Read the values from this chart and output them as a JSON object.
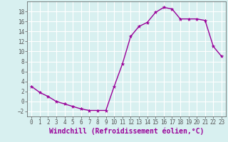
{
  "x": [
    0,
    1,
    2,
    3,
    4,
    5,
    6,
    7,
    8,
    9,
    10,
    11,
    12,
    13,
    14,
    15,
    16,
    17,
    18,
    19,
    20,
    21,
    22,
    23
  ],
  "y": [
    3.0,
    1.8,
    1.0,
    0.0,
    -0.5,
    -1.0,
    -1.5,
    -1.8,
    -1.8,
    -1.8,
    3.0,
    7.5,
    13.0,
    15.0,
    15.8,
    17.8,
    18.8,
    18.5,
    16.5,
    16.5,
    16.5,
    16.2,
    11.0,
    9.0
  ],
  "line_color": "#990099",
  "marker": "*",
  "bg_color": "#d8f0f0",
  "grid_color": "#ffffff",
  "axis_color": "#555555",
  "xlabel": "Windchill (Refroidissement éolien,°C)",
  "xlabel_color": "#990099",
  "ylim": [
    -3,
    20
  ],
  "xlim": [
    -0.5,
    23.5
  ],
  "yticks": [
    -2,
    0,
    2,
    4,
    6,
    8,
    10,
    12,
    14,
    16,
    18
  ],
  "xticks": [
    0,
    1,
    2,
    3,
    4,
    5,
    6,
    7,
    8,
    9,
    10,
    11,
    12,
    13,
    14,
    15,
    16,
    17,
    18,
    19,
    20,
    21,
    22,
    23
  ],
  "tick_fontsize": 5.5,
  "xlabel_fontsize": 7.0,
  "line_width": 1.0,
  "marker_size": 3.5
}
